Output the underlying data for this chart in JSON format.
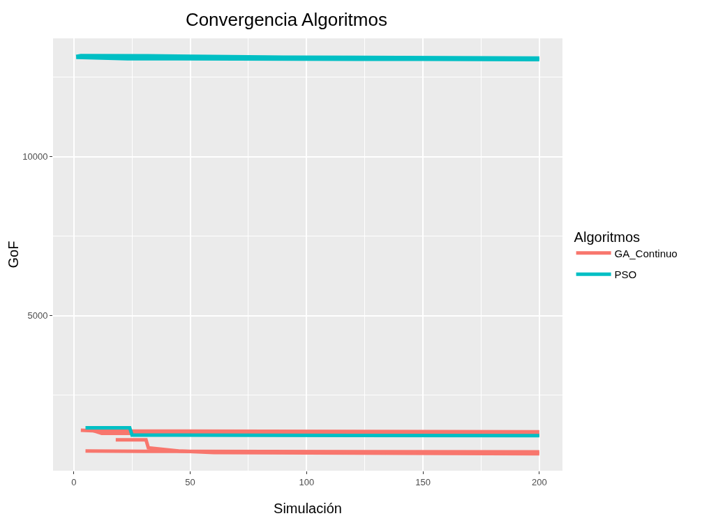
{
  "chart_data": {
    "type": "line",
    "title": "Convergencia Algoritmos",
    "xlabel": "Simulación",
    "ylabel": "GoF",
    "legend_title": "Algoritmos",
    "legend": "right",
    "grid": true,
    "line_style": "solid",
    "marker": "none",
    "xlim": [
      -8.95,
      209.95
    ],
    "xticks": [
      0,
      50,
      100,
      150,
      200,
      {
        "value": 25,
        "label": null
      },
      {
        "value": 75,
        "label": null
      },
      {
        "value": 125,
        "label": null
      },
      {
        "value": 175,
        "label": null
      }
    ],
    "ylim": [
      130,
      13720
    ],
    "yticks": [
      5000,
      10000,
      {
        "value": 2500,
        "label": null
      },
      {
        "value": 7500,
        "label": null
      },
      {
        "value": 12500,
        "label": null
      }
    ],
    "series": [
      {
        "name": "GA_Continuo",
        "color": "#f8766d",
        "x": [
          3,
          10,
          200
        ],
        "values": [
          1400,
          1380,
          1350
        ]
      },
      {
        "color": "#f8766d",
        "x": [
          7,
          12,
          150,
          151,
          200
        ],
        "values": [
          1420,
          1300,
          1300,
          1280,
          1260
        ]
      },
      {
        "color": "#f8766d",
        "x": [
          18,
          31,
          32,
          45,
          60,
          200
        ],
        "values": [
          1100,
          1100,
          850,
          750,
          700,
          660
        ]
      },
      {
        "color": "#f8766d",
        "x": [
          5,
          30,
          200
        ],
        "values": [
          750,
          740,
          720
        ]
      },
      {
        "name": "PSO",
        "color": "#00bfc4",
        "x": [
          1,
          3,
          32,
          90,
          200
        ],
        "values": [
          13150,
          13180,
          13170,
          13130,
          13100
        ]
      },
      {
        "color": "#00bfc4",
        "x": [
          1,
          23,
          150,
          200
        ],
        "values": [
          13120,
          13080,
          13060,
          13050
        ]
      },
      {
        "color": "#00bfc4",
        "x": [
          5,
          24,
          25,
          200
        ],
        "values": [
          1480,
          1480,
          1250,
          1230
        ]
      }
    ]
  }
}
